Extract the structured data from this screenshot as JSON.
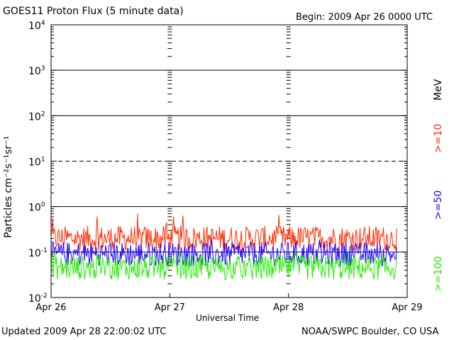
{
  "header": {
    "title": "GOES11 Proton Flux (5 minute data)",
    "begin": "Begin: 2009 Apr 26 0000 UTC"
  },
  "footer": {
    "updated": "Updated 2009 Apr 28 22:00:02 UTC",
    "credit": "NOAA/SWPC Boulder, CO USA"
  },
  "colors": {
    "ge10": "#ff2a00",
    "ge50": "#1e00ff",
    "ge100": "#22ee00",
    "axis": "#000000",
    "background": "#ffffff"
  },
  "chart_data": {
    "type": "line",
    "title": "GOES11 Proton Flux (5 minute data)",
    "xlabel": "Universal Time",
    "ylabel": "Particles cm⁻²s⁻¹sr⁻¹",
    "units_label": "MeV",
    "y_scale": "log",
    "ylim": [
      0.01,
      10000
    ],
    "y_ticks": [
      {
        "value": 0.01,
        "base": "10",
        "exp": "-2"
      },
      {
        "value": 0.1,
        "base": "10",
        "exp": "-1"
      },
      {
        "value": 1,
        "base": "10",
        "exp": "0"
      },
      {
        "value": 10,
        "base": "10",
        "exp": "1"
      },
      {
        "value": 100,
        "base": "10",
        "exp": "2"
      },
      {
        "value": 1000,
        "base": "10",
        "exp": "3"
      },
      {
        "value": 10000,
        "base": "10",
        "exp": "4"
      }
    ],
    "xlim": [
      "2009-04-26 00:00",
      "2009-04-29 00:00"
    ],
    "x_ticks": [
      "Apr 26",
      "Apr 27",
      "Apr 28",
      "Apr 29"
    ],
    "data_end": "2009-04-28 22:00",
    "dashed_levels": [
      10
    ],
    "grid": true,
    "legend_position": "right, vertical",
    "series": [
      {
        "name": ">=10",
        "color": "#ff2a00",
        "typical": 0.2,
        "min": 0.1,
        "max": 0.7
      },
      {
        "name": ">=50",
        "color": "#1e00ff",
        "typical": 0.09,
        "min": 0.05,
        "max": 0.2
      },
      {
        "name": ">=100",
        "color": "#22ee00",
        "typical": 0.045,
        "min": 0.025,
        "max": 0.1
      }
    ]
  }
}
